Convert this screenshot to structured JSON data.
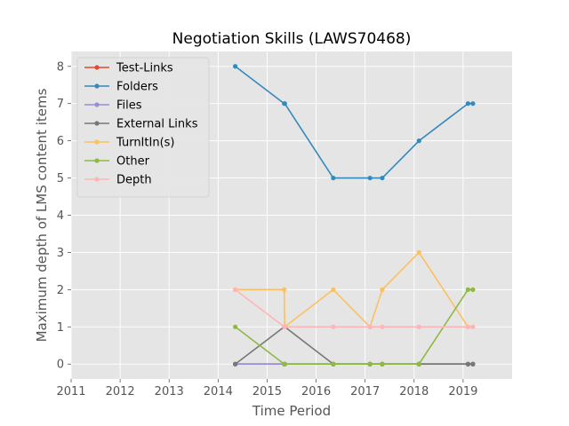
{
  "chart_data": {
    "type": "line",
    "title": "Negotiation Skills (LAWS70468)",
    "xlabel": "Time Period",
    "ylabel": "Maximum depth of LMS content items",
    "xlim": [
      2011,
      2020
    ],
    "ylim": [
      -0.4,
      8.4
    ],
    "x_ticks": [
      2011,
      2012,
      2013,
      2014,
      2015,
      2016,
      2017,
      2018,
      2019
    ],
    "y_ticks": [
      0,
      1,
      2,
      3,
      4,
      5,
      6,
      7,
      8
    ],
    "grid": true,
    "legend_position": "top-left",
    "x": [
      2014.35,
      2015.35,
      2015.36,
      2016.35,
      2017.1,
      2017.35,
      2018.1,
      2019.1,
      2019.2
    ],
    "series": [
      {
        "name": "Test-Links",
        "color": "#e24a33",
        "values": [
          0,
          0,
          0,
          0,
          0,
          0,
          0,
          0,
          0
        ]
      },
      {
        "name": "Folders",
        "color": "#348abd",
        "values": [
          8,
          7,
          7,
          5,
          5,
          5,
          6,
          7,
          7
        ]
      },
      {
        "name": "Files",
        "color": "#988ed5",
        "values": [
          0,
          0,
          0,
          0,
          0,
          0,
          0,
          0,
          0
        ]
      },
      {
        "name": "External Links",
        "color": "#777777",
        "values": [
          0,
          1,
          1,
          0,
          0,
          0,
          0,
          0,
          0
        ]
      },
      {
        "name": "TurnItIn(s)",
        "color": "#fbc15e",
        "values": [
          2,
          2,
          1,
          2,
          1,
          2,
          3,
          1,
          1
        ]
      },
      {
        "name": "Other",
        "color": "#8eba42",
        "values": [
          1,
          0,
          0,
          0,
          0,
          0,
          0,
          2,
          2
        ]
      },
      {
        "name": "Depth",
        "color": "#ffb5b8",
        "values": [
          2,
          1,
          1,
          1,
          1,
          1,
          1,
          1,
          1
        ]
      }
    ]
  }
}
